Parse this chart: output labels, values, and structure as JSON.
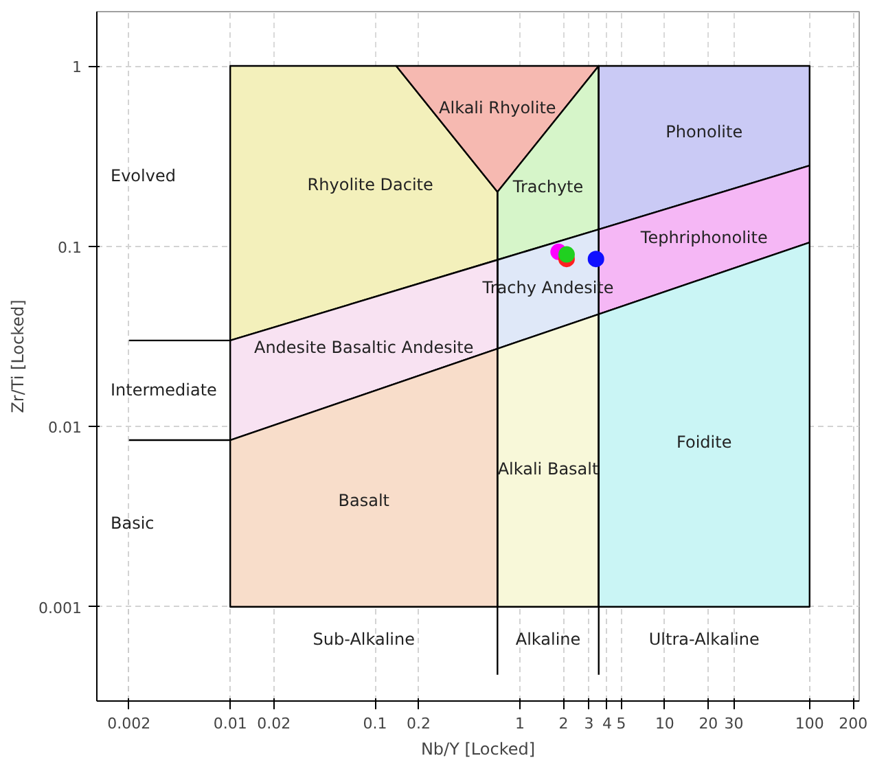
{
  "chart_data": {
    "type": "scatter",
    "xlabel": "Nb/Y [Locked]",
    "ylabel": "Zr/Ti [Locked]",
    "log": "xy",
    "grid": true,
    "marker": "circle",
    "xlim": [
      0.0012,
      220
    ],
    "ylim": [
      0.0003,
      2
    ],
    "xticks": [
      0.002,
      0.01,
      0.02,
      0.1,
      0.2,
      1,
      2,
      3,
      4,
      5,
      10,
      20,
      30,
      100,
      200
    ],
    "yticks": [
      0.001,
      0.01,
      0.1,
      1
    ],
    "series": [
      {
        "type": "area",
        "marker": "none",
        "name": "Rhyolite Dacite",
        "color": "#f3f0bb",
        "x": [
          0.01,
          0.01,
          0.14,
          0.7,
          0.7
        ],
        "values": [
          0.03,
          1,
          1,
          0.2,
          0.084
        ]
      },
      {
        "type": "area",
        "marker": "none",
        "name": "Alkali Rhyolite",
        "color": "#f6b9b1",
        "x": [
          0.14,
          3.5,
          0.7
        ],
        "values": [
          1,
          1,
          0.2
        ]
      },
      {
        "type": "area",
        "marker": "none",
        "name": "Trachyte",
        "color": "#d6f5c9",
        "x": [
          0.7,
          3.5,
          3.5,
          0.7
        ],
        "values": [
          0.2,
          1,
          0.124,
          0.084
        ]
      },
      {
        "type": "area",
        "marker": "none",
        "name": "Phonolite",
        "color": "#cacaf5",
        "x": [
          3.5,
          100,
          100,
          3.5
        ],
        "values": [
          1,
          1,
          0.28,
          0.124
        ]
      },
      {
        "type": "area",
        "marker": "none",
        "name": "Tephriphonolite",
        "color": "#f5b7f5",
        "x": [
          3.5,
          100,
          100,
          3.5
        ],
        "values": [
          0.124,
          0.28,
          0.105,
          0.042
        ]
      },
      {
        "type": "area",
        "marker": "none",
        "name": "Trachy Andesite",
        "color": "#dfe8f8",
        "x": [
          0.7,
          3.5,
          3.5,
          0.7
        ],
        "values": [
          0.084,
          0.124,
          0.042,
          0.027
        ]
      },
      {
        "type": "area",
        "marker": "none",
        "name": "Andesite Basaltic Andesite",
        "color": "#f8e2f2",
        "x": [
          0.01,
          0.7,
          0.7,
          0.01
        ],
        "values": [
          0.03,
          0.084,
          0.027,
          0.0084
        ]
      },
      {
        "type": "area",
        "marker": "none",
        "name": "Basalt",
        "color": "#f8ddca",
        "x": [
          0.01,
          0.7,
          0.7,
          0.01
        ],
        "values": [
          0.0084,
          0.027,
          0.001,
          0.001
        ]
      },
      {
        "type": "area",
        "marker": "none",
        "name": "Alkali Basalt",
        "color": "#f8f8d9",
        "x": [
          0.7,
          3.5,
          3.5,
          0.7
        ],
        "values": [
          0.027,
          0.042,
          0.001,
          0.001
        ]
      },
      {
        "type": "area",
        "marker": "none",
        "name": "Foidite",
        "color": "#caf5f5",
        "x": [
          3.5,
          100,
          100,
          3.5
        ],
        "values": [
          0.042,
          0.105,
          0.001,
          0.001
        ]
      },
      {
        "type": "line",
        "marker": "none",
        "color": "#000000",
        "x": [
          0.002,
          0.01
        ],
        "values": [
          0.03,
          0.03
        ]
      },
      {
        "type": "line",
        "marker": "none",
        "color": "#000000",
        "x": [
          0.002,
          0.01
        ],
        "values": [
          0.0084,
          0.0084
        ]
      },
      {
        "type": "line",
        "marker": "none",
        "color": "#000000",
        "x": [
          0.7,
          0.7
        ],
        "values": [
          0.2,
          0.00042
        ]
      },
      {
        "type": "line",
        "marker": "none",
        "color": "#000000",
        "x": [
          3.5,
          3.5
        ],
        "values": [
          1,
          0.00042
        ]
      },
      {
        "color": "#ff00ff",
        "x": [
          1.85
        ],
        "values": [
          0.093
        ]
      },
      {
        "color": "#ff2020",
        "x": [
          2.1
        ],
        "values": [
          0.085
        ]
      },
      {
        "color": "#20d020",
        "x": [
          2.1
        ],
        "values": [
          0.09
        ]
      },
      {
        "color": "#1010ff",
        "x": [
          3.35
        ],
        "values": [
          0.085
        ]
      }
    ],
    "bands": [
      {
        "axis": "y",
        "from": 0.03,
        "to": 2,
        "label": "Evolved",
        "color": "#ffffff"
      },
      {
        "axis": "y",
        "from": 0.0084,
        "to": 0.03,
        "label": "Intermediate",
        "color": "#ffffff"
      },
      {
        "axis": "y",
        "from": 0.001,
        "to": 0.0084,
        "label": "Basic",
        "color": "#ffffff"
      },
      {
        "axis": "x",
        "from": 0.01,
        "to": 0.7,
        "label": "Sub-Alkaline",
        "color": "#ffffff"
      },
      {
        "axis": "x",
        "from": 0.7,
        "to": 3.5,
        "label": "Alkaline",
        "color": "#ffffff"
      },
      {
        "axis": "x",
        "from": 3.5,
        "to": 100,
        "label": "Ultra-Alkaline",
        "color": "#ffffff"
      }
    ]
  }
}
